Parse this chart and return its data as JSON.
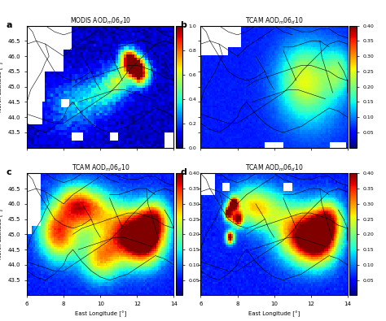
{
  "title_a": "MODIS AOD$_m$06$_d$10",
  "title_b": "TCAM AOD$_m$06$_d$10",
  "title_c": "TCAM AOD$_m$06$_d$10",
  "title_d": "TCAM AOD$_m$06$_d$10",
  "label_a": "a",
  "label_b": "b",
  "label_c": "c",
  "label_d": "d",
  "lon_range": [
    6,
    14
  ],
  "lat_range": [
    43.0,
    47.0
  ],
  "lat_ticks": [
    43.5,
    44.0,
    44.5,
    45.0,
    45.5,
    46.0,
    46.5
  ],
  "lon_ticks": [
    6,
    8,
    10,
    12,
    14
  ],
  "xlabel": "East Longitude [°]",
  "ylabel": "North Latitude [°]",
  "cmap": "jet",
  "vmin_a": 0,
  "vmax_a": 1,
  "vmin_bcd": 0,
  "vmax_bcd": 0.4,
  "colorbar_ticks_a": [
    0,
    0.2,
    0.4,
    0.6,
    0.8,
    1.0
  ],
  "colorbar_ticks_bcd": [
    0.05,
    0.1,
    0.15,
    0.2,
    0.25,
    0.3,
    0.35,
    0.4
  ],
  "figsize": [
    4.74,
    3.95
  ],
  "dpi": 100
}
